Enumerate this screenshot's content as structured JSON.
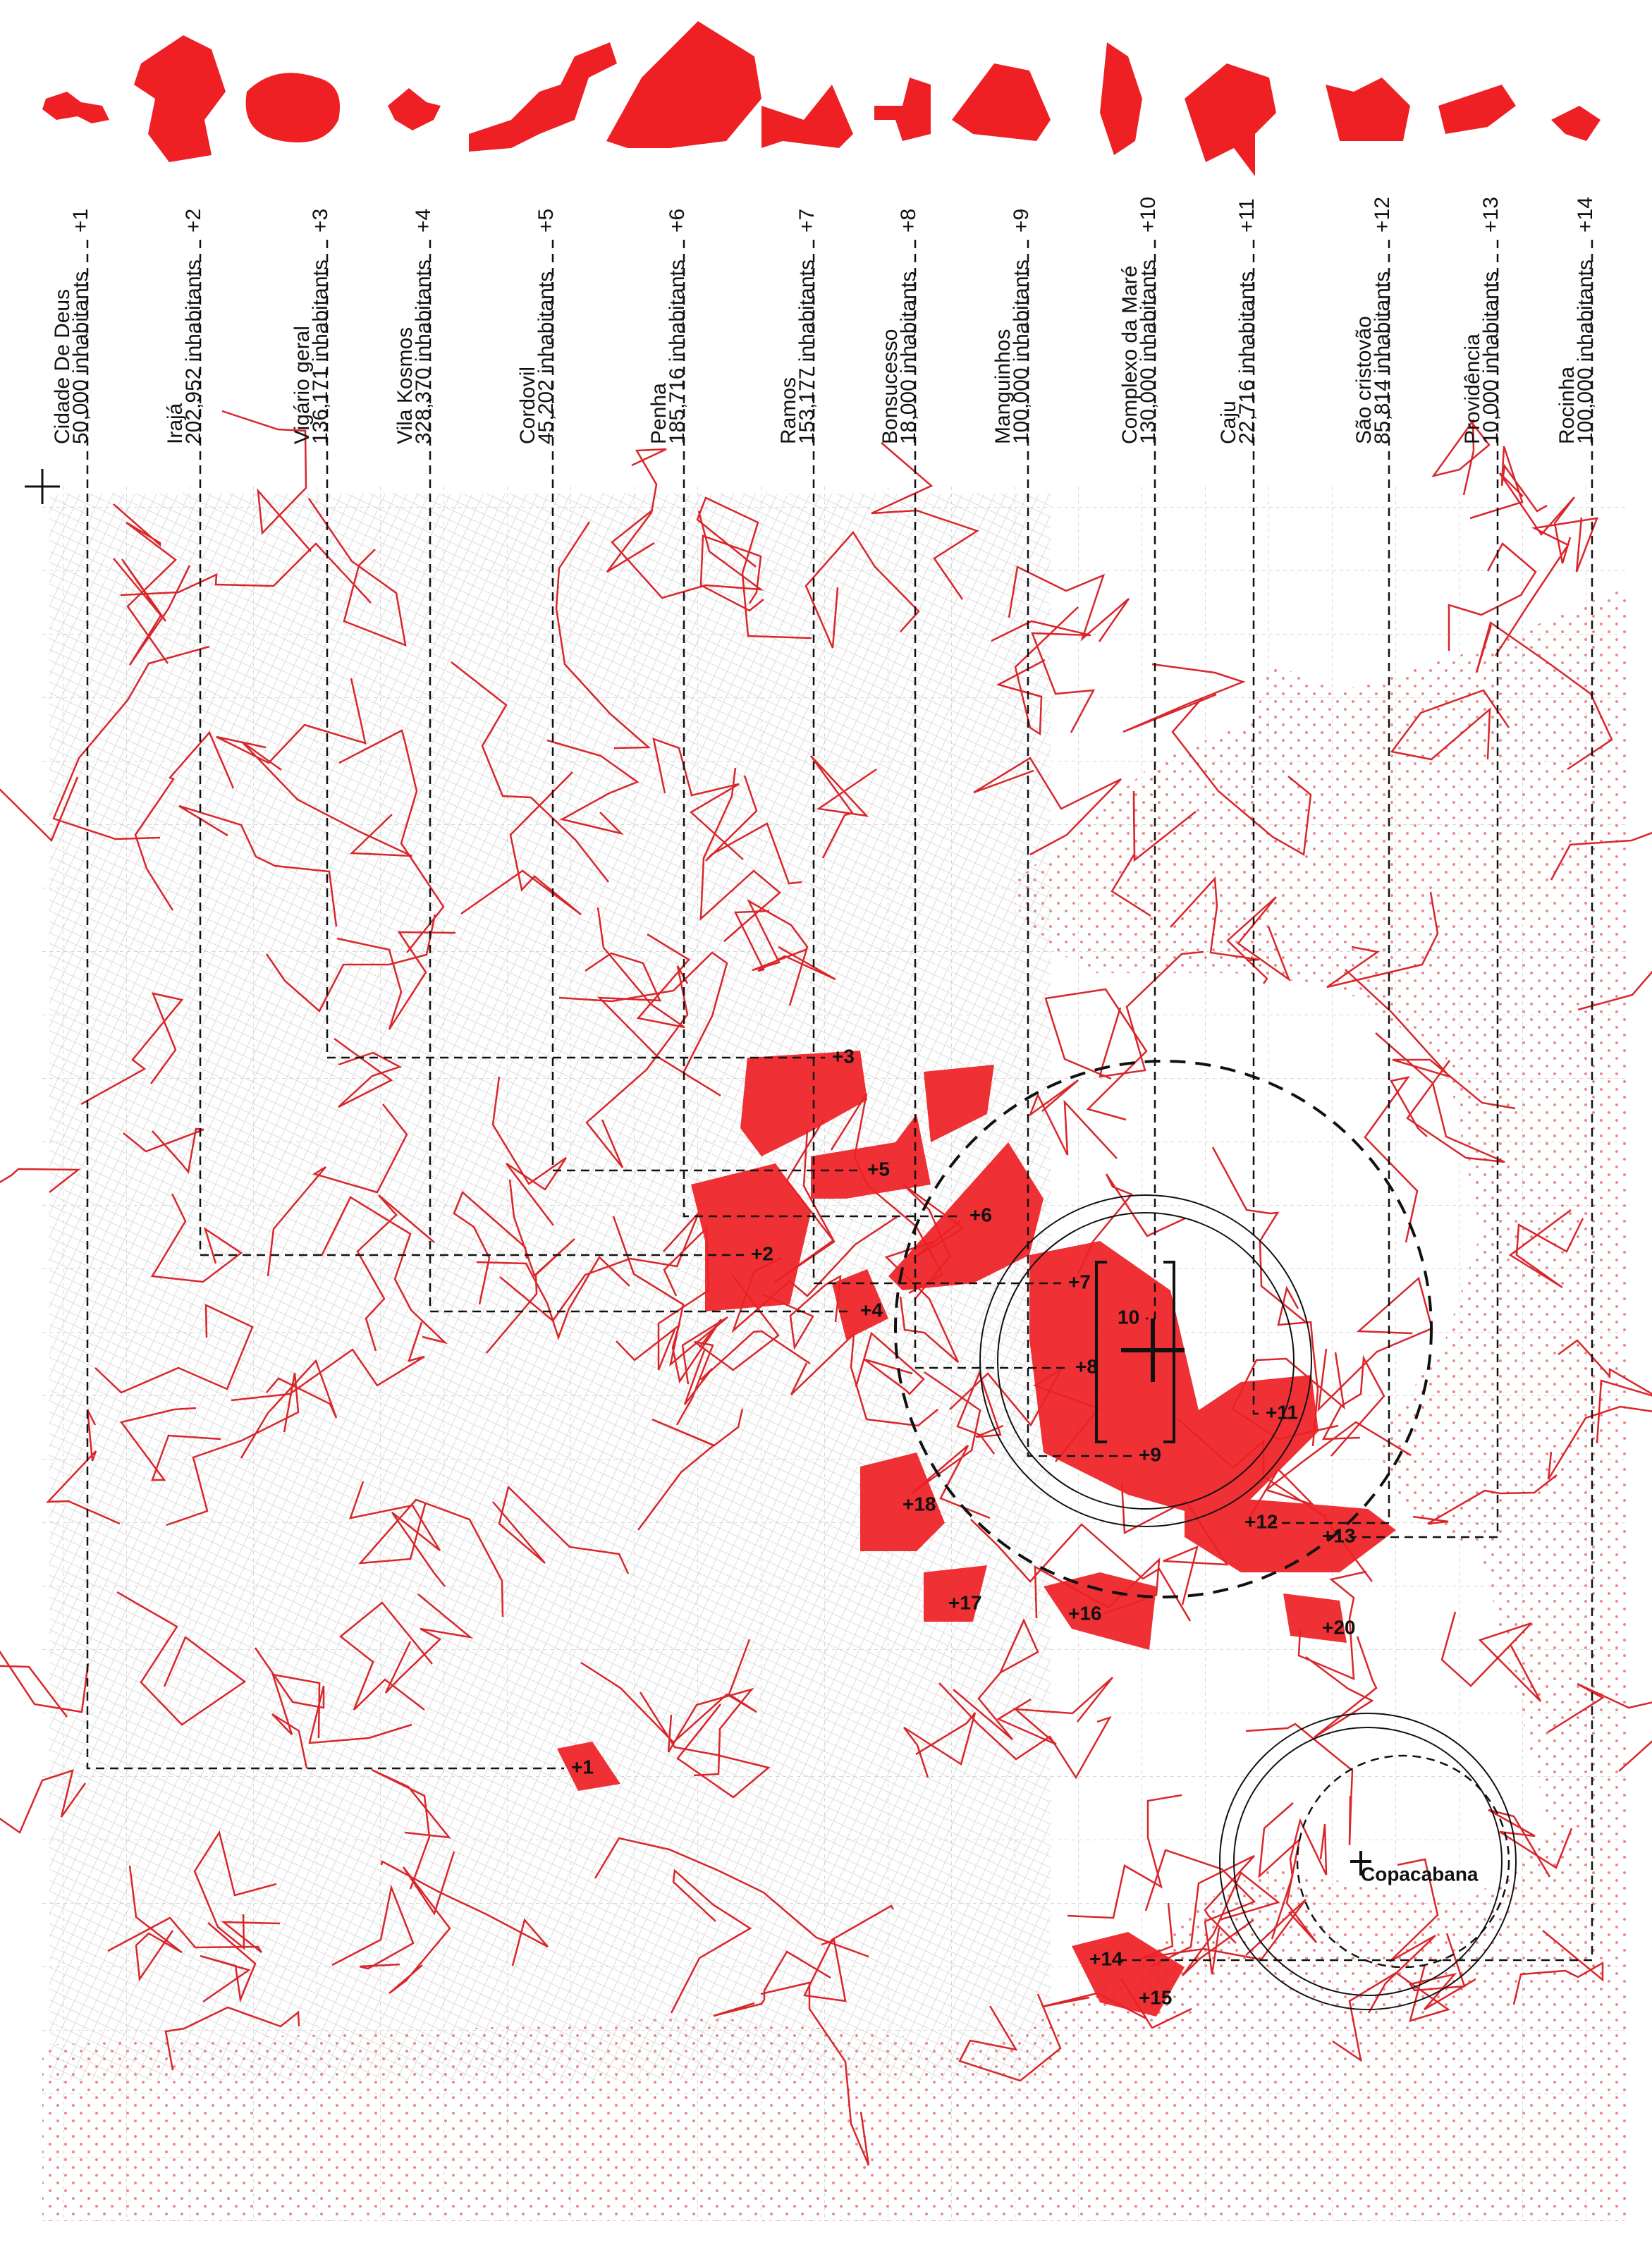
{
  "favelas": [
    {
      "number": "+1",
      "name": "Cidade De Deus",
      "population": "50,000 inhabitants"
    },
    {
      "number": "+2",
      "name": "Irajá",
      "population": "202,952 inhabitants"
    },
    {
      "number": "+3",
      "name": "Vigário geral",
      "population": "136,171 inhabitants"
    },
    {
      "number": "+4",
      "name": "Vila Kosmos",
      "population": "328,370 inhabitants"
    },
    {
      "number": "+5",
      "name": "Cordovil",
      "population": "45,202  inhabitants"
    },
    {
      "number": "+6",
      "name": "Penha",
      "population": "185,716 inhabitants"
    },
    {
      "number": "+7",
      "name": "Ramos",
      "population": "153,177 inhabitants"
    },
    {
      "number": "+8",
      "name": "Bonsucesso",
      "population": "18,000 inhabitants"
    },
    {
      "number": "+9",
      "name": "Manguinhos",
      "population": "100,000 inhabitants"
    },
    {
      "number": "+10",
      "name": "Complexo da Maré",
      "population": "130,000 inhabitants"
    },
    {
      "number": "+11",
      "name": "Caju",
      "population": "22,716  inhabitants"
    },
    {
      "number": "+12",
      "name": "São cristovão",
      "population": "85,814  inhabitants"
    },
    {
      "number": "+13",
      "name": "Providência",
      "population": "10,000  inhabitants"
    },
    {
      "number": "+14",
      "name": "Rocinha",
      "population": "100,000 inhabitants"
    }
  ],
  "map_labels": [
    "+1",
    "+2",
    "+3",
    "+4",
    "+5",
    "+6",
    "+7",
    "+8",
    "+9",
    "10",
    "+11",
    "+12",
    "+13",
    "+14",
    "+15",
    "+16",
    "+17",
    "+18",
    "+20",
    "Copacabana"
  ]
}
